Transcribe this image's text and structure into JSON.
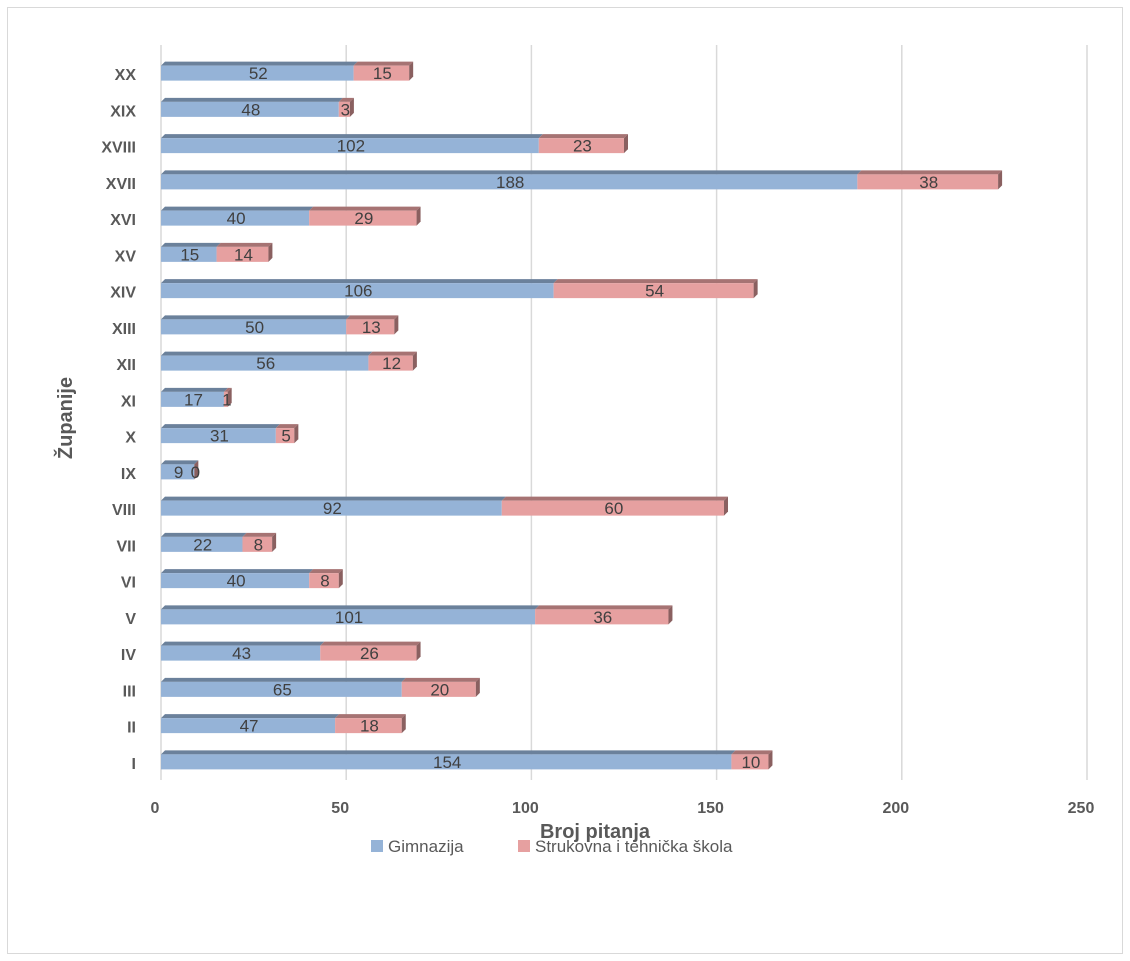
{
  "chart_data": {
    "type": "bar",
    "orientation": "horizontal",
    "stacked": true,
    "title": "",
    "xlabel": "Broj pitanja",
    "ylabel": "Županije",
    "xlim": [
      0,
      250
    ],
    "x_ticks": [
      "0",
      "50",
      "100",
      "150",
      "200",
      "250"
    ],
    "grid": true,
    "legend_position": "bottom",
    "categories": [
      "I",
      "II",
      "III",
      "IV",
      "V",
      "VI",
      "VII",
      "VIII",
      "IX",
      "X",
      "XI",
      "XII",
      "XIII",
      "XIV",
      "XV",
      "XVI",
      "XVII",
      "XVIII",
      "XIX",
      "XX"
    ],
    "series": [
      {
        "name": "Gimnazija",
        "color": "#95b3d7",
        "values": [
          154,
          47,
          65,
          43,
          101,
          40,
          22,
          92,
          9,
          31,
          17,
          56,
          50,
          106,
          15,
          40,
          188,
          102,
          48,
          52
        ]
      },
      {
        "name": "Strukovna i tehnička škola",
        "color": "#e6a0a0",
        "values": [
          10,
          18,
          20,
          26,
          36,
          8,
          8,
          60,
          0,
          5,
          1,
          12,
          13,
          54,
          14,
          29,
          38,
          23,
          3,
          15
        ]
      }
    ]
  }
}
